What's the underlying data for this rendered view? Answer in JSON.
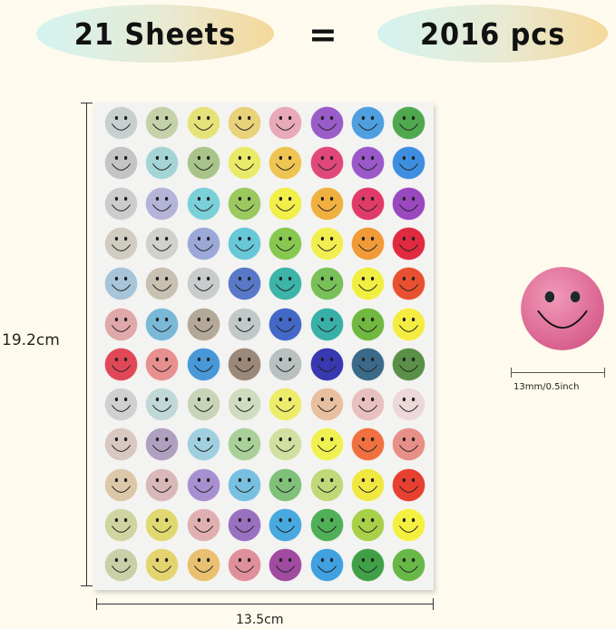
{
  "header": {
    "sheets_label": "21 Sheets",
    "equals": "=",
    "pieces_label": "2016 pcs"
  },
  "dimensions": {
    "height": "19.2cm",
    "width": "13.5cm",
    "sticker_size": "13mm/0.5inch"
  },
  "detail_sticker": {
    "color": "#e27a9e",
    "icon": "smiley-face-icon"
  },
  "sheet": {
    "columns": 8,
    "rows": 12,
    "sticker_icon": "smiley-face-icon",
    "colors": [
      [
        "#c8cfcf",
        "#c5d1a8",
        "#e6e27a",
        "#e8d27a",
        "#e8a9b8",
        "#9a5cc8",
        "#4e9ee0",
        "#4fa84e"
      ],
      [
        "#c4c4c4",
        "#a5d4d4",
        "#a8c48a",
        "#eaea6a",
        "#eec452",
        "#e0487a",
        "#9a58c8",
        "#3e8ee0"
      ],
      [
        "#cccccc",
        "#b4b4d8",
        "#7ad0d8",
        "#9cc860",
        "#f2ee4a",
        "#f0b040",
        "#e03a68",
        "#9a48c0"
      ],
      [
        "#d0ccc0",
        "#d0d0cc",
        "#9ca8d8",
        "#68c8d8",
        "#88c850",
        "#f2ee50",
        "#f09a38",
        "#e02a40"
      ],
      [
        "#a8c4d8",
        "#c8c0b0",
        "#c8cccc",
        "#5a78c8",
        "#3cb4a8",
        "#78c058",
        "#f0ee40",
        "#e85030"
      ],
      [
        "#e0a8a8",
        "#7ab8d8",
        "#b4a898",
        "#c0c8c8",
        "#4468c8",
        "#38b0a8",
        "#70b840",
        "#f4ec40"
      ],
      [
        "#e04858",
        "#e89090",
        "#4898d8",
        "#9c8878",
        "#b8c0c0",
        "#3838b0",
        "#3a6a88",
        "#5a9048"
      ],
      [
        "#d0d0d0",
        "#c0d8d8",
        "#c8d4b8",
        "#d0dcc0",
        "#ecec6a",
        "#e8c0a0",
        "#e8c0c0",
        "#ecd8d8"
      ],
      [
        "#d8c8c0",
        "#b0a0c0",
        "#a0d0e0",
        "#a8d098",
        "#d0e0a0",
        "#f0f050",
        "#f07040",
        "#e89088"
      ],
      [
        "#dcc8a8",
        "#d8b8b8",
        "#a890d0",
        "#78c0e0",
        "#80c078",
        "#c0d878",
        "#f0e840",
        "#e84030"
      ],
      [
        "#d0d4a0",
        "#e0d870",
        "#e0b0b0",
        "#9a70c0",
        "#48a8e0",
        "#50b058",
        "#a8d048",
        "#f4f040"
      ],
      [
        "#c8d0a8",
        "#e4d470",
        "#e8c070",
        "#e0909a",
        "#a04aa0",
        "#40a0e0",
        "#40a048",
        "#68b848"
      ]
    ]
  }
}
